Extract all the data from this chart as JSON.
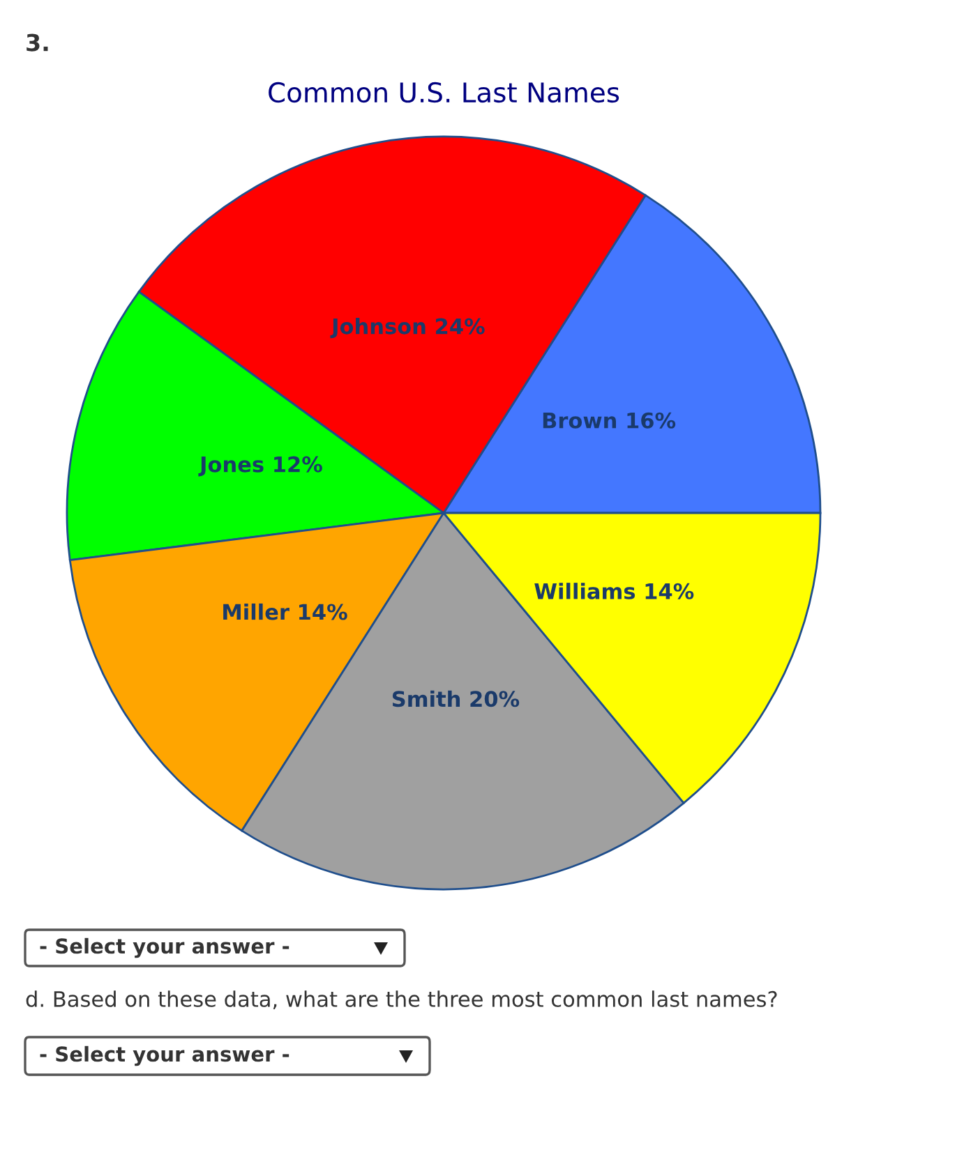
{
  "chart_data": {
    "type": "pie",
    "title": "Common U.S. Last Names",
    "categories": [
      "Brown",
      "Johnson",
      "Jones",
      "Miller",
      "Smith",
      "Williams"
    ],
    "values": [
      16,
      24,
      12,
      14,
      20,
      14
    ],
    "value_labels": [
      "16%",
      "24%",
      "12%",
      "14%",
      "20%",
      "14%"
    ],
    "colors": [
      "#4477ff",
      "#ff0000",
      "#00ff00",
      "#ffa500",
      "#a0a0a0",
      "#ffff00"
    ],
    "annotations": [
      "3.",
      "- Select your answer -",
      "d. Based on these data, what are the three most common last names?",
      "- Select your answer -"
    ]
  }
}
